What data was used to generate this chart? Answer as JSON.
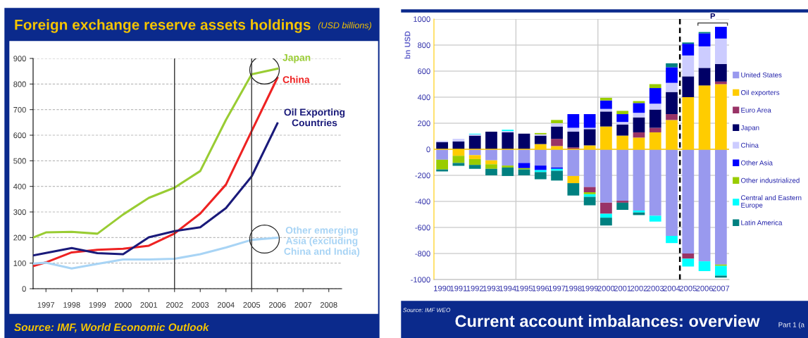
{
  "chart_data": [
    {
      "type": "line",
      "title": "Foreign exchange reserve assets holdings",
      "subtitle": "(USD billions)",
      "x": [
        1996.5,
        1997,
        1998,
        1999,
        2000,
        2001,
        2002,
        2003,
        2004,
        2005,
        2006
      ],
      "series": [
        {
          "name": "Japan",
          "color": "#99cc33",
          "values": [
            200,
            220,
            222,
            215,
            290,
            355,
            395,
            460,
            660,
            838,
            860
          ]
        },
        {
          "name": "China",
          "color": "#ee2222",
          "values": [
            88,
            103,
            142,
            152,
            156,
            168,
            216,
            294,
            407,
            616,
            824
          ]
        },
        {
          "name": "Oil Exporting\nCountries",
          "color": "#1a1a7a",
          "values": [
            130,
            140,
            159,
            139,
            135,
            201,
            225,
            240,
            315,
            439,
            646
          ]
        },
        {
          "name": "Other emerging\nAsia (excluding\nChina and India)",
          "color": "#a8d4f5",
          "values": [
            98,
            102,
            79,
            97,
            114,
            114,
            117,
            135,
            161,
            191,
            199
          ]
        }
      ],
      "xlim": [
        1996.5,
        2008.5
      ],
      "xticks": [
        1997,
        1998,
        1999,
        2000,
        2001,
        2002,
        2003,
        2004,
        2005,
        2006,
        2007,
        2008
      ],
      "ylim": [
        0,
        900
      ],
      "yticks": [
        0,
        100,
        200,
        300,
        400,
        500,
        600,
        700,
        800,
        900
      ],
      "grid": "y",
      "legend": false,
      "ref_lines": [
        {
          "axis": "x",
          "value": 2002,
          "color": "#333333"
        },
        {
          "axis": "x",
          "value": 2005,
          "color": "#333333"
        }
      ],
      "annotations": [
        "Source: IMF, World Economic Outlook"
      ]
    },
    {
      "type": "bar",
      "stacked": true,
      "title": "Current account imbalances: overview",
      "ylabel": "bn USD",
      "x": [
        1990,
        1991,
        1992,
        1993,
        1994,
        1995,
        1996,
        1997,
        1998,
        1999,
        2000,
        2001,
        2002,
        2003,
        2004,
        2005,
        2006,
        2007
      ],
      "xlim": [
        1989.5,
        2007.5
      ],
      "xticks": [
        1990,
        1991,
        1992,
        1993,
        1994,
        1995,
        1996,
        1997,
        1998,
        1999,
        2000,
        2001,
        2002,
        2003,
        2004,
        2005,
        2006,
        2007
      ],
      "series": [
        {
          "name": "United States",
          "color": "#9999ee",
          "values": [
            -80,
            null,
            -45,
            -85,
            -125,
            -105,
            -125,
            -140,
            -205,
            -290,
            -410,
            -395,
            -470,
            -510,
            -665,
            -800,
            -860,
            -885
          ]
        },
        {
          "name": "Oil exporters",
          "color": "#ffcc00",
          "values": [
            null,
            -50,
            -30,
            -30,
            null,
            null,
            40,
            25,
            -55,
            30,
            175,
            105,
            90,
            130,
            225,
            400,
            490,
            500
          ]
        },
        {
          "name": "Euro Area",
          "color": "#993366",
          "values": [
            null,
            null,
            null,
            null,
            null,
            null,
            null,
            55,
            15,
            -40,
            -85,
            -15,
            40,
            35,
            45,
            -40,
            null,
            20
          ]
        },
        {
          "name": "Japan",
          "color": "#000066",
          "values": [
            55,
            60,
            105,
            135,
            130,
            120,
            65,
            95,
            120,
            125,
            115,
            85,
            115,
            140,
            170,
            160,
            135,
            135
          ]
        },
        {
          "name": "China",
          "color": "#ccccff",
          "values": [
            10,
            20,
            10,
            null,
            10,
            null,
            10,
            25,
            30,
            10,
            20,
            20,
            35,
            45,
            70,
            160,
            165,
            195
          ]
        },
        {
          "name": "Other Asia",
          "color": "#0000ff",
          "values": [
            null,
            null,
            null,
            null,
            null,
            -40,
            -35,
            -10,
            105,
            105,
            65,
            60,
            75,
            120,
            120,
            90,
            100,
            90
          ]
        },
        {
          "name": "Other industrialized",
          "color": "#99cc00",
          "values": [
            -75,
            -55,
            -45,
            -35,
            -15,
            -10,
            10,
            25,
            null,
            -15,
            20,
            25,
            15,
            30,
            null,
            null,
            null,
            -10
          ]
        },
        {
          "name": "Central and Eastern\nEurope",
          "color": "#00ffff",
          "values": [
            null,
            null,
            5,
            null,
            10,
            null,
            -15,
            -15,
            null,
            -20,
            -30,
            null,
            -15,
            -45,
            -55,
            -60,
            -75,
            -75
          ]
        },
        {
          "name": "Latin America",
          "color": "#008080",
          "values": [
            -15,
            -22,
            -30,
            -50,
            -65,
            -45,
            -55,
            -75,
            -95,
            -65,
            -60,
            -55,
            -20,
            null,
            30,
            10,
            10,
            -15
          ]
        }
      ],
      "ylim": [
        -1000,
        1000
      ],
      "yticks": [
        -1000,
        -800,
        -600,
        -400,
        -200,
        0,
        200,
        400,
        600,
        800,
        1000
      ],
      "grid": "y",
      "legend": "right",
      "ref_lines": [
        {
          "axis": "y",
          "value": 0,
          "color": "#ffcc00"
        },
        {
          "axis": "x",
          "value": 1994.5,
          "color": "#cccccc"
        },
        {
          "axis": "x",
          "value": 1999.5,
          "color": "#cccccc"
        },
        {
          "axis": "x",
          "value": 2004.5,
          "color": "#000000",
          "line_style": "dashed"
        }
      ],
      "annotations": [
        "P",
        "Source: IMF WEO",
        "Part 1 (a"
      ]
    }
  ]
}
